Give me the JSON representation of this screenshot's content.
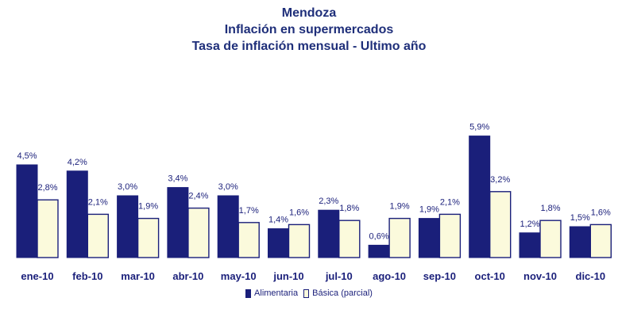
{
  "chart_data": {
    "type": "bar",
    "title": "Mendoza",
    "subtitle_1": "Inflación en supermercados",
    "subtitle_2": "Tasa de inflación mensual - Ultimo año",
    "categories": [
      "ene-10",
      "feb-10",
      "mar-10",
      "abr-10",
      "may-10",
      "jun-10",
      "jul-10",
      "ago-10",
      "sep-10",
      "oct-10",
      "nov-10",
      "dic-10"
    ],
    "series": [
      {
        "name": "Alimentaria",
        "color": "#1a1f7a",
        "values": [
          4.5,
          4.2,
          3.0,
          3.4,
          3.0,
          1.4,
          2.3,
          0.6,
          1.9,
          5.9,
          1.2,
          1.5
        ],
        "labels": [
          "4,5%",
          "4,2%",
          "3,0%",
          "3,4%",
          "3,0%",
          "1,4%",
          "2,3%",
          "0,6%",
          "1,9%",
          "5,9%",
          "1,2%",
          "1,5%"
        ]
      },
      {
        "name": "Básica (parcial)",
        "color": "#fbfadc",
        "values": [
          2.8,
          2.1,
          1.9,
          2.4,
          1.7,
          1.6,
          1.8,
          1.9,
          2.1,
          3.2,
          1.8,
          1.6
        ],
        "labels": [
          "2,8%",
          "2,1%",
          "1,9%",
          "2,4%",
          "1,7%",
          "1,6%",
          "1,8%",
          "1,9%",
          "2,1%",
          "3,2%",
          "1,8%",
          "1,6%"
        ]
      }
    ],
    "ylim": [
      0,
      6.5
    ],
    "grid": false,
    "legend_position": "bottom"
  }
}
